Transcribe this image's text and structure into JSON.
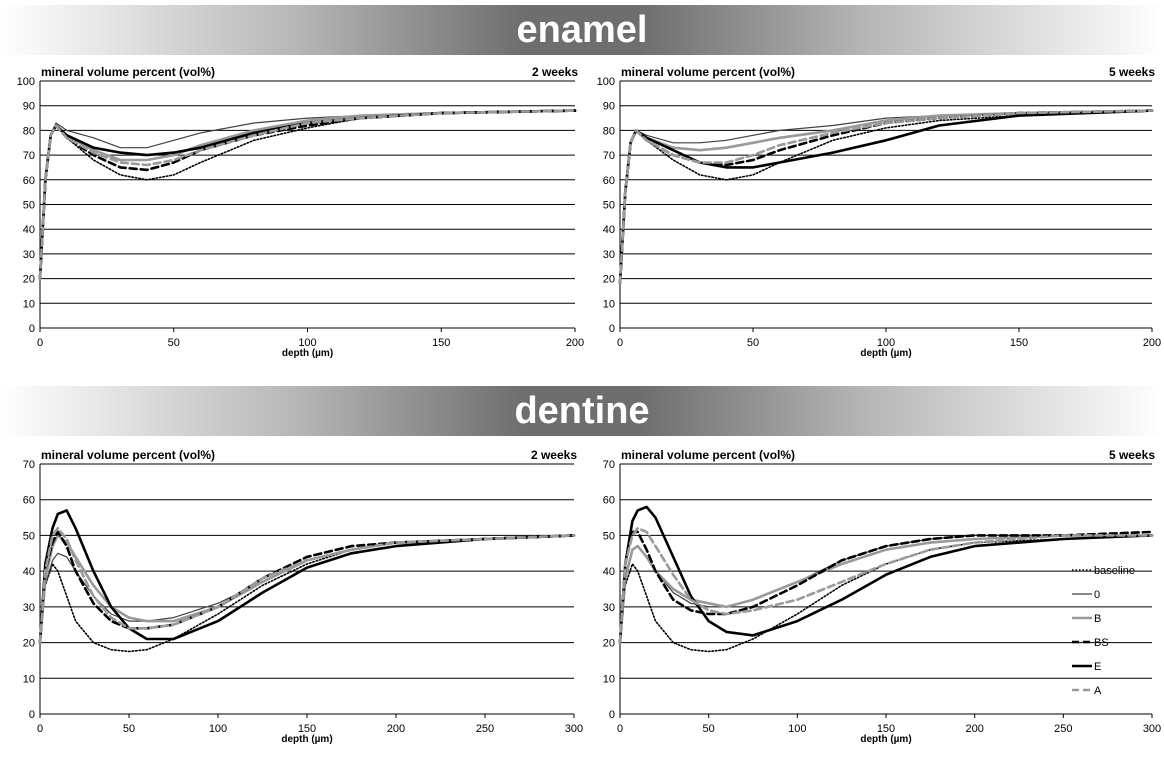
{
  "sections": {
    "enamel": "enamel",
    "dentine": "dentine"
  },
  "chart_data": [
    {
      "type": "line",
      "title": "mineral volume percent (vol%)",
      "subtitle": "2 weeks",
      "xlabel": "depth (µm)",
      "ylabel": "mineral volume percent (vol%)",
      "xlim": [
        0,
        200
      ],
      "ylim": [
        0,
        100
      ],
      "xticks": [
        0,
        50,
        100,
        150,
        200
      ],
      "yticks": [
        0,
        10,
        20,
        30,
        40,
        50,
        60,
        70,
        80,
        90,
        100
      ],
      "grid": "horizontal",
      "series": [
        {
          "name": "baseline",
          "x": [
            0,
            2,
            4,
            6,
            10,
            20,
            30,
            40,
            50,
            60,
            80,
            100,
            120,
            150,
            200
          ],
          "y": [
            20,
            60,
            78,
            82,
            77,
            68,
            62,
            60,
            62,
            67,
            76,
            81,
            85,
            87,
            88
          ]
        },
        {
          "name": "0",
          "x": [
            0,
            2,
            4,
            6,
            10,
            20,
            30,
            40,
            50,
            60,
            80,
            100,
            120,
            150,
            200
          ],
          "y": [
            20,
            60,
            78,
            83,
            80,
            77,
            73,
            73,
            76,
            79,
            83,
            85,
            86,
            87,
            88
          ]
        },
        {
          "name": "B",
          "x": [
            0,
            2,
            4,
            6,
            10,
            20,
            30,
            40,
            50,
            60,
            80,
            100,
            120,
            150,
            200
          ],
          "y": [
            20,
            60,
            78,
            82,
            78,
            72,
            68,
            68,
            70,
            74,
            80,
            84,
            86,
            87,
            88
          ]
        },
        {
          "name": "BS",
          "x": [
            0,
            2,
            4,
            6,
            10,
            20,
            30,
            40,
            50,
            60,
            80,
            100,
            120,
            150,
            200
          ],
          "y": [
            20,
            60,
            78,
            82,
            77,
            70,
            65,
            64,
            67,
            72,
            78,
            82,
            85,
            87,
            88
          ]
        },
        {
          "name": "E",
          "x": [
            0,
            2,
            4,
            6,
            10,
            20,
            30,
            40,
            50,
            60,
            80,
            100,
            120,
            150,
            200
          ],
          "y": [
            20,
            60,
            78,
            82,
            78,
            73,
            71,
            70,
            71,
            73,
            79,
            83,
            85,
            87,
            88
          ]
        },
        {
          "name": "A",
          "x": [
            0,
            2,
            4,
            6,
            10,
            20,
            30,
            40,
            50,
            60,
            80,
            100,
            120,
            150,
            200
          ],
          "y": [
            20,
            60,
            78,
            82,
            77,
            71,
            67,
            66,
            68,
            72,
            78,
            83,
            85,
            87,
            88
          ]
        }
      ]
    },
    {
      "type": "line",
      "title": "mineral volume percent (vol%)",
      "subtitle": "5 weeks",
      "xlabel": "depth (µm)",
      "ylabel": "mineral volume percent (vol%)",
      "xlim": [
        0,
        200
      ],
      "ylim": [
        0,
        100
      ],
      "xticks": [
        0,
        50,
        100,
        150,
        200
      ],
      "yticks": [
        0,
        10,
        20,
        30,
        40,
        50,
        60,
        70,
        80,
        90,
        100
      ],
      "grid": "horizontal",
      "series": [
        {
          "name": "baseline",
          "x": [
            0,
            2,
            4,
            6,
            10,
            20,
            30,
            40,
            50,
            60,
            80,
            100,
            120,
            150,
            200
          ],
          "y": [
            18,
            55,
            75,
            80,
            76,
            68,
            62,
            60,
            62,
            67,
            76,
            81,
            84,
            86,
            88
          ]
        },
        {
          "name": "0",
          "x": [
            0,
            2,
            4,
            6,
            10,
            20,
            30,
            40,
            50,
            60,
            80,
            100,
            120,
            150,
            200
          ],
          "y": [
            18,
            55,
            75,
            80,
            78,
            75,
            75,
            76,
            78,
            80,
            82,
            85,
            86,
            87,
            88
          ]
        },
        {
          "name": "B",
          "x": [
            0,
            2,
            4,
            6,
            10,
            20,
            30,
            40,
            50,
            60,
            80,
            100,
            120,
            150,
            200
          ],
          "y": [
            18,
            55,
            75,
            80,
            77,
            73,
            72,
            73,
            75,
            77,
            80,
            84,
            86,
            87,
            88
          ]
        },
        {
          "name": "BS",
          "x": [
            0,
            2,
            4,
            6,
            10,
            20,
            30,
            40,
            50,
            60,
            80,
            100,
            120,
            150,
            200
          ],
          "y": [
            18,
            55,
            75,
            80,
            76,
            70,
            67,
            66,
            68,
            72,
            78,
            83,
            85,
            87,
            88
          ]
        },
        {
          "name": "E",
          "x": [
            0,
            2,
            4,
            6,
            10,
            20,
            30,
            40,
            50,
            60,
            80,
            100,
            120,
            150,
            200
          ],
          "y": [
            18,
            55,
            75,
            80,
            77,
            72,
            67,
            65,
            65,
            67,
            71,
            76,
            82,
            86,
            88
          ]
        },
        {
          "name": "A",
          "x": [
            0,
            2,
            4,
            6,
            10,
            20,
            30,
            40,
            50,
            60,
            80,
            100,
            120,
            150,
            200
          ],
          "y": [
            18,
            55,
            75,
            80,
            76,
            70,
            67,
            67,
            70,
            74,
            79,
            83,
            85,
            87,
            88
          ]
        }
      ]
    },
    {
      "type": "line",
      "title": "mineral volume percent (vol%)",
      "subtitle": "2 weeks",
      "xlabel": "depth (µm)",
      "ylabel": "mineral volume percent (vol%)",
      "xlim": [
        0,
        300
      ],
      "ylim": [
        0,
        70
      ],
      "xticks": [
        0,
        50,
        100,
        150,
        200,
        250,
        300
      ],
      "yticks": [
        0,
        10,
        20,
        30,
        40,
        50,
        60,
        70
      ],
      "grid": "horizontal",
      "series": [
        {
          "name": "baseline",
          "x": [
            0,
            3,
            7,
            10,
            15,
            20,
            30,
            40,
            50,
            60,
            75,
            100,
            125,
            150,
            175,
            200,
            250,
            300
          ],
          "y": [
            20,
            36,
            42,
            40,
            33,
            26,
            20,
            18,
            17.5,
            18,
            21,
            28,
            36,
            42,
            46,
            48,
            49,
            50
          ]
        },
        {
          "name": "0",
          "x": [
            0,
            3,
            7,
            10,
            15,
            20,
            30,
            40,
            50,
            60,
            75,
            100,
            125,
            150,
            175,
            200,
            250,
            300
          ],
          "y": [
            20,
            36,
            43,
            45,
            44,
            40,
            33,
            28,
            26,
            26,
            27,
            31,
            37,
            43,
            46,
            48,
            49,
            50
          ]
        },
        {
          "name": "B",
          "x": [
            0,
            3,
            7,
            10,
            15,
            20,
            30,
            40,
            50,
            60,
            75,
            100,
            125,
            150,
            175,
            200,
            250,
            300
          ],
          "y": [
            20,
            38,
            47,
            50,
            48,
            44,
            36,
            30,
            27,
            26,
            26,
            30,
            37,
            43,
            46,
            48,
            49,
            50
          ]
        },
        {
          "name": "BS",
          "x": [
            0,
            3,
            7,
            10,
            15,
            20,
            30,
            40,
            50,
            60,
            75,
            100,
            125,
            150,
            175,
            200,
            250,
            300
          ],
          "y": [
            20,
            40,
            48,
            51,
            47,
            40,
            31,
            26,
            24,
            24,
            25,
            30,
            38,
            44,
            47,
            48,
            49,
            50
          ]
        },
        {
          "name": "E",
          "x": [
            0,
            3,
            7,
            10,
            15,
            20,
            30,
            40,
            50,
            60,
            75,
            100,
            125,
            150,
            175,
            200,
            250,
            300
          ],
          "y": [
            20,
            42,
            52,
            56,
            57,
            52,
            40,
            30,
            24,
            21,
            21,
            26,
            34,
            41,
            45,
            47,
            49,
            50
          ]
        },
        {
          "name": "A",
          "x": [
            0,
            3,
            7,
            10,
            15,
            20,
            30,
            40,
            50,
            60,
            75,
            100,
            125,
            150,
            175,
            200,
            250,
            300
          ],
          "y": [
            20,
            40,
            50,
            52,
            49,
            43,
            33,
            27,
            24,
            24,
            25,
            30,
            38,
            43,
            46,
            48,
            49,
            50
          ]
        }
      ]
    },
    {
      "type": "line",
      "title": "mineral volume percent (vol%)",
      "subtitle": "5 weeks",
      "xlabel": "depth (µm)",
      "ylabel": "mineral volume percent (vol%)",
      "xlim": [
        0,
        300
      ],
      "ylim": [
        0,
        70
      ],
      "xticks": [
        0,
        50,
        100,
        150,
        200,
        250,
        300
      ],
      "yticks": [
        0,
        10,
        20,
        30,
        40,
        50,
        60,
        70
      ],
      "grid": "horizontal",
      "legend": "right",
      "series": [
        {
          "name": "baseline",
          "x": [
            0,
            3,
            7,
            10,
            15,
            20,
            30,
            40,
            50,
            60,
            75,
            100,
            125,
            150,
            175,
            200,
            250,
            300
          ],
          "y": [
            20,
            36,
            42,
            40,
            33,
            26,
            20,
            18,
            17.5,
            18,
            21,
            28,
            36,
            42,
            46,
            48,
            49,
            50
          ]
        },
        {
          "name": "0",
          "x": [
            0,
            3,
            7,
            10,
            15,
            20,
            30,
            40,
            50,
            60,
            75,
            100,
            125,
            150,
            175,
            200,
            250,
            300
          ],
          "y": [
            20,
            38,
            46,
            47,
            44,
            40,
            34,
            31,
            30,
            30,
            32,
            37,
            43,
            47,
            49,
            50,
            50,
            50
          ]
        },
        {
          "name": "B",
          "x": [
            0,
            3,
            7,
            10,
            15,
            20,
            30,
            40,
            50,
            60,
            75,
            100,
            125,
            150,
            175,
            200,
            250,
            300
          ],
          "y": [
            20,
            38,
            46,
            47,
            44,
            40,
            35,
            32,
            31,
            30,
            32,
            37,
            42,
            46,
            48,
            49,
            50,
            50
          ]
        },
        {
          "name": "BS",
          "x": [
            0,
            3,
            7,
            10,
            15,
            20,
            30,
            40,
            50,
            60,
            75,
            100,
            125,
            150,
            175,
            200,
            250,
            300
          ],
          "y": [
            20,
            42,
            51,
            51,
            46,
            40,
            32,
            29,
            28,
            28,
            30,
            36,
            43,
            47,
            49,
            50,
            50,
            51
          ]
        },
        {
          "name": "E",
          "x": [
            0,
            3,
            7,
            10,
            15,
            20,
            30,
            40,
            50,
            60,
            75,
            100,
            125,
            150,
            175,
            200,
            250,
            300
          ],
          "y": [
            20,
            42,
            54,
            57,
            58,
            55,
            44,
            33,
            26,
            23,
            22,
            26,
            32,
            39,
            44,
            47,
            49,
            50
          ]
        },
        {
          "name": "A",
          "x": [
            0,
            3,
            7,
            10,
            15,
            20,
            30,
            40,
            50,
            60,
            75,
            100,
            125,
            150,
            175,
            200,
            250,
            300
          ],
          "y": [
            20,
            42,
            50,
            52,
            51,
            47,
            39,
            32,
            29,
            28,
            29,
            32,
            37,
            42,
            46,
            48,
            50,
            50
          ]
        }
      ]
    }
  ],
  "series_styles": {
    "baseline": {
      "color": "#000000",
      "width": 1.6,
      "dash": "1.5,2"
    },
    "0": {
      "color": "#404040",
      "width": 1.2,
      "dash": ""
    },
    "B": {
      "color": "#999999",
      "width": 2.6,
      "dash": ""
    },
    "BS": {
      "color": "#000000",
      "width": 2.6,
      "dash": "7,4"
    },
    "E": {
      "color": "#000000",
      "width": 2.6,
      "dash": ""
    },
    "A": {
      "color": "#9a9a9a",
      "width": 2.6,
      "dash": "7,4"
    }
  }
}
